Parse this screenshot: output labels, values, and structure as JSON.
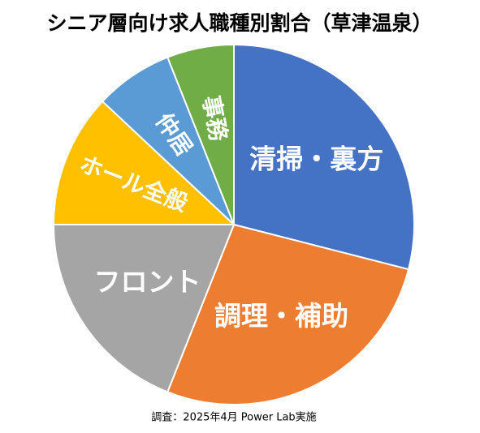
{
  "chart_data": {
    "type": "pie",
    "title": "シニア層向け求人職種別割合（草津温泉）",
    "categories": [
      "清掃・裏方",
      "調理・補助",
      "フロント",
      "ホール全般",
      "仲居",
      "事務"
    ],
    "values": [
      29,
      27,
      19,
      12,
      7,
      6
    ],
    "colors": [
      "#4472c4",
      "#ed7d31",
      "#a5a5a5",
      "#ffc000",
      "#5b9bd5",
      "#70ad47"
    ],
    "source": "調査：2025年4月 Power Lab実施"
  }
}
